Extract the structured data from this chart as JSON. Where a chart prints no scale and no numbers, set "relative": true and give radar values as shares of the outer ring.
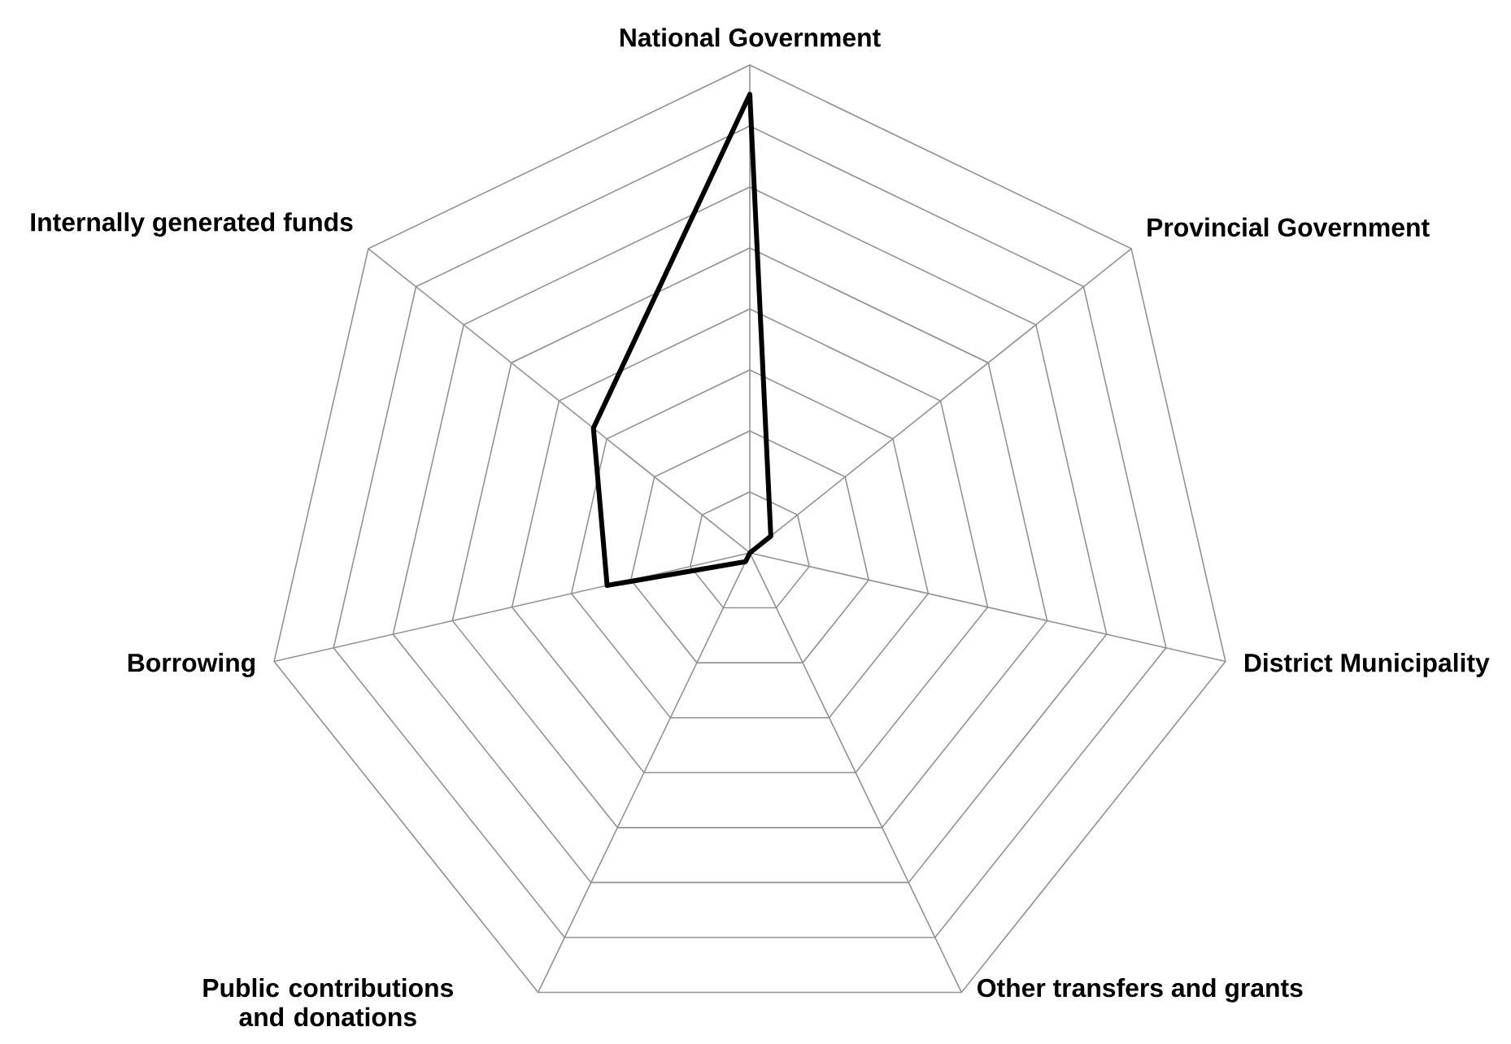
{
  "chart_data": {
    "type": "radar",
    "relative": true,
    "grid": true,
    "categories": [
      "National Government",
      "Provincial Government",
      "District Municipality",
      "Other transfers and grants",
      "Public contributions and donations",
      "Borrowing",
      "Internally generated funds"
    ],
    "series": [
      {
        "color": "#000000",
        "values": [
          0.94,
          0.055,
          0,
          0,
          0.02,
          0.3,
          0.41
        ]
      }
    ]
  }
}
